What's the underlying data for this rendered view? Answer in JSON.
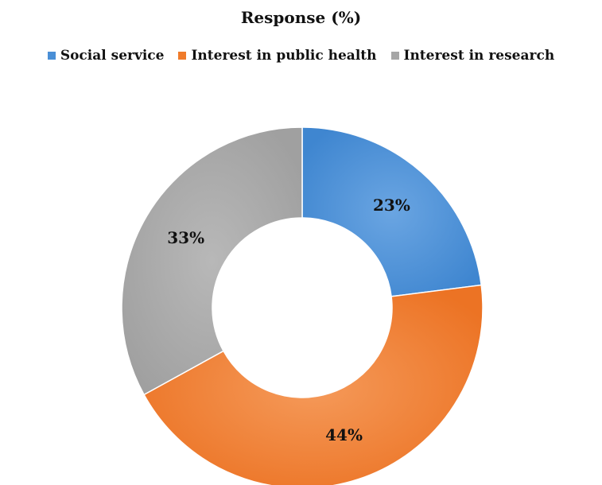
{
  "chart_data": {
    "type": "pie",
    "title": "Response (%)",
    "donut": true,
    "legend_position": "top",
    "categories": [
      "Social service",
      "Interest in public health",
      "Interest in research"
    ],
    "values": [
      23,
      44,
      33
    ],
    "labels": [
      "23%",
      "44%",
      "33%"
    ],
    "colors": [
      "#4a8fd6",
      "#f07b2a",
      "#a6a6a6"
    ],
    "unit": "%"
  }
}
